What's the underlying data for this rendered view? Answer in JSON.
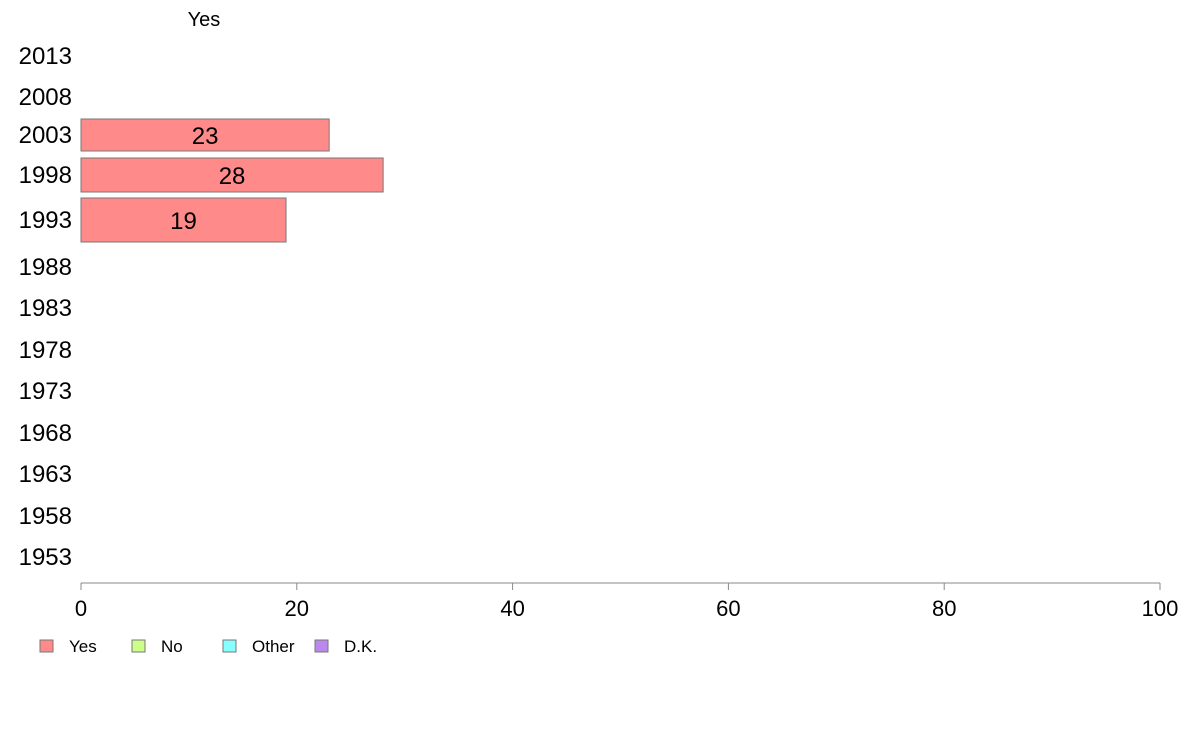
{
  "chart_data": {
    "type": "bar",
    "orientation": "horizontal",
    "stacked": true,
    "panel_title": "Yes",
    "categories": [
      "2013",
      "2008",
      "2003",
      "1998",
      "1993",
      "1988",
      "1983",
      "1978",
      "1973",
      "1968",
      "1963",
      "1958",
      "1953"
    ],
    "series": [
      {
        "name": "Yes",
        "color": "#ff8a8a",
        "values": [
          null,
          null,
          23,
          28,
          19,
          null,
          null,
          null,
          null,
          null,
          null,
          null,
          null
        ]
      },
      {
        "name": "No",
        "color": "#ccff88",
        "values": [
          null,
          null,
          null,
          null,
          null,
          null,
          null,
          null,
          null,
          null,
          null,
          null,
          null
        ]
      },
      {
        "name": "Other",
        "color": "#88ffff",
        "values": [
          null,
          null,
          null,
          null,
          null,
          null,
          null,
          null,
          null,
          null,
          null,
          null,
          null
        ]
      },
      {
        "name": "D.K.",
        "color": "#bb88ee",
        "values": [
          null,
          null,
          null,
          null,
          null,
          null,
          null,
          null,
          null,
          null,
          null,
          null,
          null
        ]
      }
    ],
    "xlim": [
      0,
      100
    ],
    "xticks": [
      0,
      20,
      40,
      60,
      80,
      100
    ],
    "xlabel": "",
    "ylabel": "",
    "grid": false,
    "legend_position": "bottom-left"
  }
}
